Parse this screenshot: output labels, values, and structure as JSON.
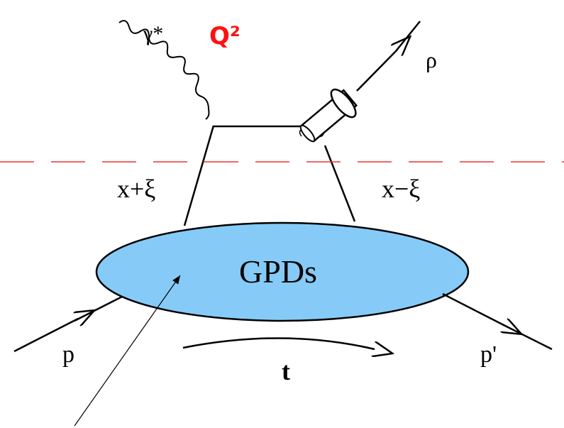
{
  "labels": {
    "photon": "γ*",
    "virtuality": "Q²",
    "meson": "ρ",
    "left_parton": "x+ξ",
    "right_parton": "x−ξ",
    "blob": "GPDs",
    "incoming_proton": "p",
    "momentum_transfer": "t",
    "outgoing_proton": "p'"
  }
}
